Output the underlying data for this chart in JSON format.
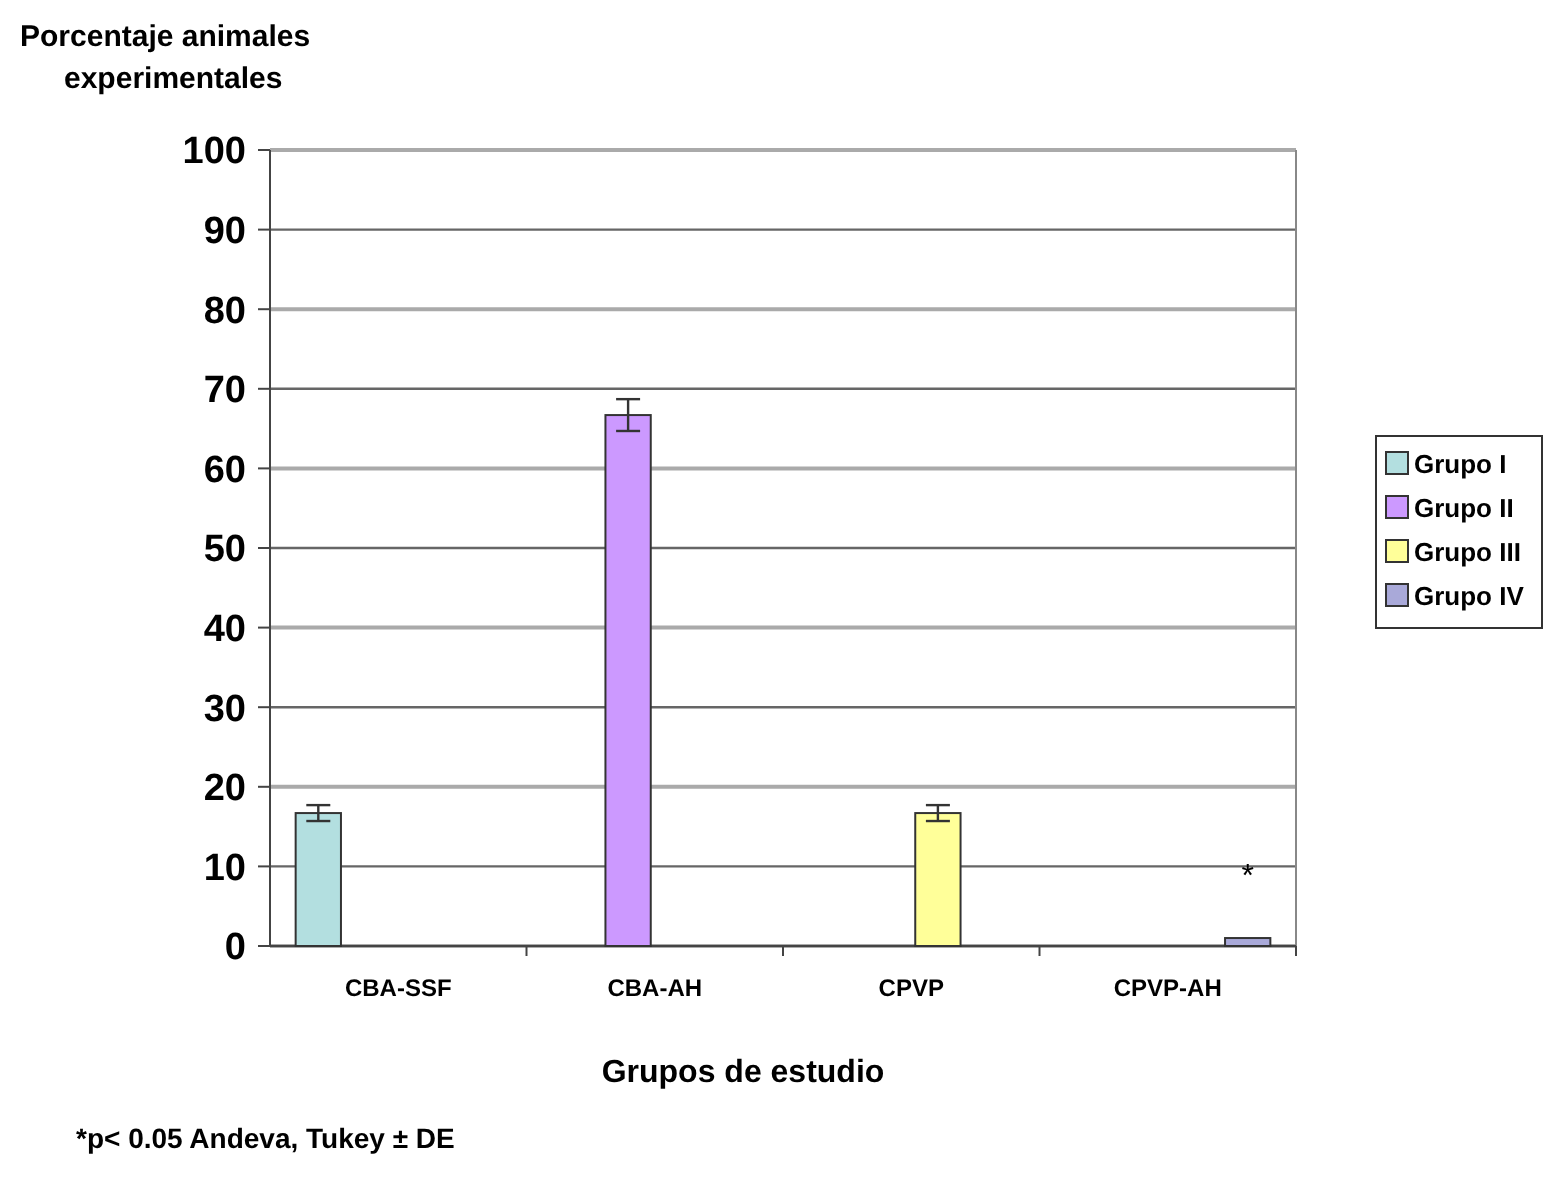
{
  "chart_data": {
    "type": "bar",
    "ylabel": "Porcentaje animales experimentales",
    "xlabel": "Grupos de estudio",
    "categories": [
      "CBA-SSF",
      "CBA-AH",
      "CPVP",
      "CPVP-AH"
    ],
    "series": [
      {
        "name": "Grupo I",
        "color": "#b3dfe0",
        "values": [
          16.7,
          null,
          null,
          null
        ],
        "errors": [
          1,
          null,
          null,
          null
        ]
      },
      {
        "name": "Grupo II",
        "color": "#cc99ff",
        "values": [
          null,
          66.7,
          null,
          null
        ],
        "errors": [
          null,
          2,
          null,
          null
        ]
      },
      {
        "name": "Grupo III",
        "color": "#ffff99",
        "values": [
          null,
          null,
          16.7,
          null
        ],
        "errors": [
          null,
          null,
          1,
          null
        ]
      },
      {
        "name": "Grupo IV",
        "color": "#a9a9d9",
        "values": [
          null,
          null,
          null,
          1
        ],
        "errors": [
          null,
          null,
          null,
          null
        ]
      }
    ],
    "ylim": [
      0,
      100
    ],
    "yticks": [
      0,
      10,
      20,
      30,
      40,
      50,
      60,
      70,
      80,
      90,
      100
    ],
    "grid": "y",
    "legend": "right",
    "annotations": [
      "*",
      "*p< 0.05 Andeva, Tukey ± DE"
    ]
  }
}
